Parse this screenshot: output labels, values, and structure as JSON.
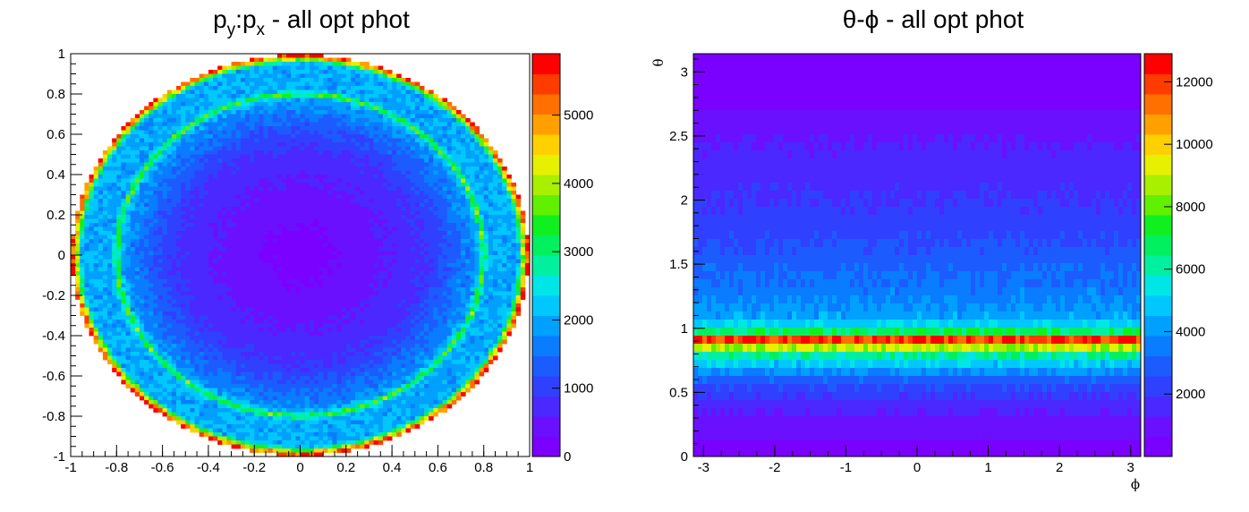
{
  "chart_data": [
    {
      "type": "heatmap",
      "title_parts": {
        "p1": "p",
        "s1": "y",
        "p2": ":p",
        "s2": "x",
        "p3": " - all opt phot"
      },
      "xlabel": "",
      "ylabel": "",
      "xlim": [
        -1,
        1
      ],
      "ylim": [
        -1,
        1
      ],
      "zlim": [
        0,
        5900
      ],
      "x_ticks": [
        "-1",
        "-0.8",
        "-0.6",
        "-0.4",
        "-0.2",
        "0",
        "0.2",
        "0.4",
        "0.6",
        "0.8",
        "1"
      ],
      "y_ticks": [
        "-1",
        "-0.8",
        "-0.6",
        "-0.4",
        "-0.2",
        "0",
        "0.2",
        "0.4",
        "0.6",
        "0.8",
        "1"
      ],
      "z_ticks": [
        "0",
        "1000",
        "2000",
        "3000",
        "4000",
        "5000"
      ],
      "bins": [
        100,
        100
      ],
      "structure": {
        "center_counts": 200,
        "inner_disk_counts": 900,
        "inner_ring_radius": 0.8,
        "inner_ring_counts": 3100,
        "outer_band_counts": 2000,
        "rim_radius": 0.99,
        "rim_counts": 5600
      }
    },
    {
      "type": "heatmap",
      "title": "θ-ϕ - all opt phot",
      "xlabel": "ϕ",
      "ylabel": "θ",
      "xlim": [
        -3.1416,
        3.1416
      ],
      "ylim": [
        0,
        3.1416
      ],
      "zlim": [
        0,
        12900
      ],
      "x_ticks": [
        "-3",
        "-2",
        "-1",
        "0",
        "1",
        "2",
        "3"
      ],
      "y_ticks": [
        "0",
        "0.5",
        "1",
        "1.5",
        "2",
        "2.5",
        "3"
      ],
      "z_ticks": [
        "2000",
        "4000",
        "6000",
        "8000",
        "10000",
        "12000"
      ],
      "bins": [
        100,
        50
      ],
      "theta_profile": [
        [
          0.0,
          300
        ],
        [
          0.2,
          900
        ],
        [
          0.4,
          1500
        ],
        [
          0.5,
          2200
        ],
        [
          0.6,
          3000
        ],
        [
          0.7,
          4500
        ],
        [
          0.8,
          6500
        ],
        [
          0.85,
          9000
        ],
        [
          0.91,
          12300
        ],
        [
          0.95,
          8000
        ],
        [
          1.0,
          5500
        ],
        [
          1.1,
          4200
        ],
        [
          1.2,
          3800
        ],
        [
          1.3,
          3500
        ],
        [
          1.5,
          3000
        ],
        [
          1.7,
          2500
        ],
        [
          1.9,
          2100
        ],
        [
          2.1,
          1800
        ],
        [
          2.3,
          1500
        ],
        [
          2.5,
          1200
        ],
        [
          2.65,
          800
        ],
        [
          2.8,
          400
        ],
        [
          3.0,
          150
        ],
        [
          3.1416,
          100
        ]
      ]
    }
  ]
}
